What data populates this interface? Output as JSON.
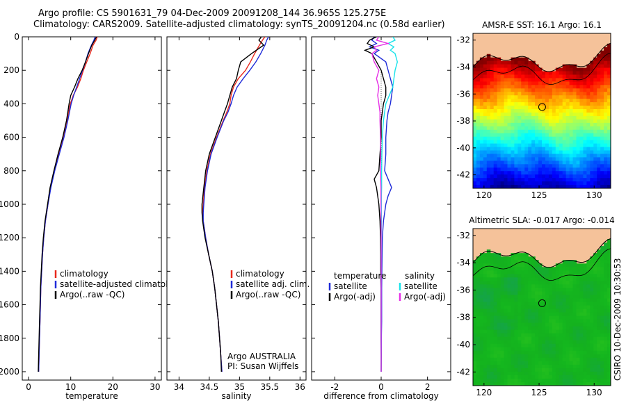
{
  "title": {
    "line1": "Argo profile: CS 5901631_79 04-Dec-2009 20091208_144 36.965S 125.275E",
    "line2": "Climatology: CARS2009. Satellite-adjusted climatology: synTS_20091204.nc (0.58d earlier)"
  },
  "credit": "CSIRO 10-Dec-2009 10:30:53",
  "colors": {
    "climatology": "#e8281c",
    "satellite": "#1f2bd8",
    "argo": "#000000",
    "sal_satellite": "#19e3ea",
    "sal_argo": "#e62ee6",
    "land": "#f5c29a"
  },
  "chart_data": [
    {
      "type": "line",
      "xlabel": "temperature",
      "ylabel": "",
      "xlim": [
        -1.5,
        31.5
      ],
      "ylim": [
        2050,
        0
      ],
      "xticks": [
        0,
        10,
        20,
        30
      ],
      "yticks": [
        0,
        200,
        400,
        600,
        800,
        1000,
        1200,
        1400,
        1600,
        1800,
        2000
      ],
      "legend": [
        "climatology",
        "satellite-adjusted climatology",
        "Argo(..raw -QC)"
      ],
      "legend_position": "lower-right",
      "y": [
        0,
        20,
        50,
        100,
        150,
        200,
        250,
        300,
        350,
        400,
        450,
        500,
        600,
        700,
        800,
        900,
        1000,
        1100,
        1200,
        1300,
        1400,
        1500,
        1600,
        1700,
        1800,
        1900,
        2000
      ],
      "series": [
        {
          "name": "climatology",
          "values": [
            16.3,
            16.0,
            15.3,
            14.6,
            13.8,
            13.0,
            12.4,
            11.6,
            10.6,
            9.9,
            9.5,
            9.1,
            8.2,
            7.1,
            6.1,
            5.2,
            4.6,
            4.0,
            3.6,
            3.3,
            3.1,
            2.9,
            2.8,
            2.7,
            2.6,
            2.5,
            2.4
          ]
        },
        {
          "name": "satellite-adjusted climatology",
          "values": [
            15.8,
            15.5,
            14.9,
            14.1,
            13.5,
            12.8,
            12.1,
            11.4,
            10.7,
            10.1,
            9.7,
            9.3,
            8.4,
            7.3,
            6.2,
            5.3,
            4.6,
            4.0,
            3.6,
            3.3,
            3.1,
            2.9,
            2.8,
            2.7,
            2.6,
            2.5,
            2.4
          ]
        },
        {
          "name": "Argo(..raw -QC)",
          "values": [
            16.1,
            15.7,
            15.0,
            14.2,
            13.5,
            12.7,
            11.7,
            10.9,
            10.0,
            9.6,
            9.3,
            9.0,
            8.1,
            7.0,
            6.0,
            5.1,
            4.5,
            3.9,
            3.5,
            3.2,
            3.0,
            2.8,
            2.7,
            2.6,
            2.5,
            2.4,
            2.3
          ]
        }
      ]
    },
    {
      "type": "line",
      "xlabel": "salinity",
      "ylabel": "",
      "xlim": [
        33.8,
        36.1
      ],
      "ylim": [
        2050,
        0
      ],
      "xticks": [
        34,
        34.5,
        35,
        35.5,
        36
      ],
      "legend": [
        "climatology",
        "satellite adj. clim.",
        "Argo(..raw -QC)"
      ],
      "legend_position": "lower-right",
      "annotation": [
        "Argo AUSTRALIA",
        "PI: Susan Wijffels"
      ],
      "y": [
        0,
        20,
        50,
        100,
        150,
        200,
        250,
        300,
        350,
        400,
        450,
        500,
        600,
        700,
        800,
        900,
        1000,
        1050,
        1100,
        1200,
        1300,
        1400,
        1500,
        1600,
        1700,
        1800,
        1900,
        2000
      ],
      "series": [
        {
          "name": "climatology",
          "values": [
            35.42,
            35.38,
            35.33,
            35.25,
            35.18,
            35.1,
            34.98,
            34.9,
            34.86,
            34.84,
            34.79,
            34.73,
            34.62,
            34.52,
            34.46,
            34.42,
            34.4,
            34.39,
            34.4,
            34.44,
            34.49,
            34.55,
            34.59,
            34.62,
            34.65,
            34.67,
            34.69,
            34.71
          ]
        },
        {
          "name": "satellite adj. clim.",
          "values": [
            35.48,
            35.45,
            35.42,
            35.35,
            35.27,
            35.17,
            35.06,
            34.96,
            34.9,
            34.86,
            34.81,
            34.74,
            34.63,
            34.53,
            34.47,
            34.43,
            34.41,
            34.4,
            34.4,
            34.44,
            34.49,
            34.55,
            34.59,
            34.62,
            34.65,
            34.67,
            34.69,
            34.71
          ]
        },
        {
          "name": "Argo(..raw -QC)",
          "values": [
            35.36,
            35.32,
            35.4,
            35.2,
            35.02,
            34.98,
            34.95,
            34.88,
            34.84,
            34.8,
            34.75,
            34.7,
            34.6,
            34.5,
            34.44,
            34.41,
            34.38,
            34.38,
            34.39,
            34.43,
            34.49,
            34.55,
            34.59,
            34.62,
            34.65,
            34.67,
            34.69,
            34.7
          ]
        }
      ]
    },
    {
      "type": "line",
      "xlabel": "difference from climatology",
      "ylabel": "",
      "xlim": [
        -3,
        3
      ],
      "ylim": [
        2050,
        0
      ],
      "xticks": [
        -2,
        0,
        2
      ],
      "legend": [
        "temperature",
        "satellite",
        "Argo(-adj)",
        "salinity",
        "satellite",
        "Argo(-adj)"
      ],
      "legend_position": "lower-center",
      "y": [
        0,
        20,
        40,
        60,
        80,
        100,
        150,
        200,
        250,
        300,
        350,
        400,
        450,
        500,
        600,
        700,
        800,
        850,
        900,
        950,
        1000,
        1100,
        1200,
        1300,
        1400,
        1500,
        1600,
        1700,
        1800,
        1900,
        2000
      ],
      "series": [
        {
          "name": "temperature satellite",
          "values": [
            -0.3,
            -0.4,
            -0.2,
            -0.5,
            -0.1,
            -0.3,
            0.2,
            0.3,
            0.4,
            0.5,
            0.45,
            0.4,
            0.3,
            0.25,
            0.2,
            0.2,
            0.15,
            0.3,
            0.45,
            0.3,
            0.2,
            0.1,
            0.05,
            0.04,
            0.03,
            0.02,
            0.02,
            0.02,
            0.01,
            0.01,
            0.0
          ]
        },
        {
          "name": "temperature Argo(-adj)",
          "values": [
            -0.2,
            -0.5,
            -0.6,
            -0.3,
            -0.7,
            -0.4,
            -0.2,
            0.0,
            0.1,
            0.2,
            0.2,
            0.1,
            0.05,
            0.0,
            0.0,
            -0.05,
            -0.1,
            -0.3,
            -0.2,
            -0.15,
            -0.1,
            -0.05,
            -0.03,
            -0.02,
            -0.02,
            -0.01,
            -0.01,
            -0.01,
            -0.01,
            0.0,
            0.0
          ]
        },
        {
          "name": "salinity satellite",
          "values": [
            0.5,
            0.6,
            0.3,
            0.55,
            0.4,
            0.6,
            0.7,
            0.6,
            0.55,
            0.5,
            0.35,
            0.2,
            0.15,
            0.1,
            0.05,
            0.03,
            0.02,
            0.02,
            0.02,
            0.01,
            0.01,
            0.01,
            0.0,
            0.0,
            0.0,
            0.0,
            0.0,
            0.0,
            0.0,
            0.0,
            0.0
          ]
        },
        {
          "name": "salinity Argo(-adj)",
          "values": [
            -0.1,
            -0.2,
            0.3,
            -0.3,
            -0.2,
            -0.4,
            -0.3,
            -0.1,
            -0.2,
            -0.1,
            -0.15,
            -0.1,
            -0.05,
            -0.05,
            -0.03,
            -0.02,
            -0.02,
            -0.02,
            -0.01,
            -0.01,
            -0.01,
            -0.01,
            0.0,
            0.0,
            0.0,
            0.0,
            0.0,
            0.0,
            0.0,
            0.0,
            0.0
          ]
        }
      ]
    },
    {
      "type": "heatmap",
      "title": "AMSR-E SST: 16.1 Argo: 16.1",
      "xlim": [
        119,
        131.5
      ],
      "ylim": [
        -43,
        -31.5
      ],
      "xticks": [
        120,
        125,
        130
      ],
      "yticks": [
        -32,
        -34,
        -36,
        -38,
        -40,
        -42
      ],
      "marker": [
        125.275,
        -36.965
      ]
    },
    {
      "type": "heatmap",
      "title": "Altimetric SLA: -0.017 Argo: -0.014",
      "xlim": [
        119,
        131.5
      ],
      "ylim": [
        -43,
        -31.5
      ],
      "xticks": [
        120,
        125,
        130
      ],
      "yticks": [
        -32,
        -34,
        -36,
        -38,
        -40,
        -42
      ],
      "marker": [
        125.275,
        -36.965
      ]
    }
  ]
}
